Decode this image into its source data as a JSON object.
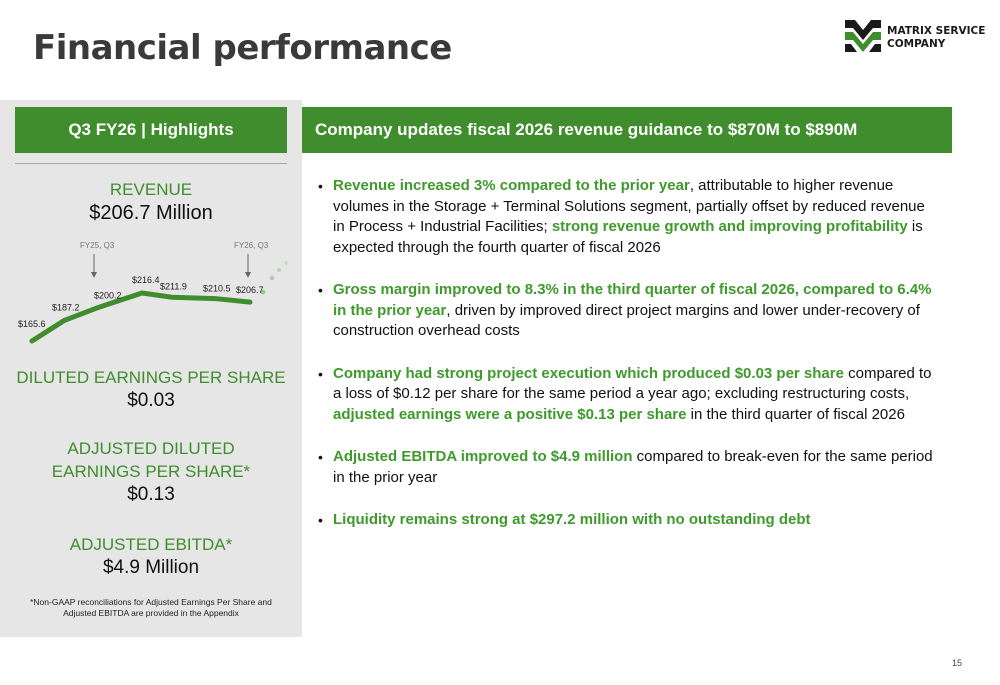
{
  "page": {
    "title": "Financial performance",
    "logo_line1": "MATRIX SERVICE",
    "logo_line2": "COMPANY",
    "page_number": "15"
  },
  "sidebar": {
    "header": "Q3 FY26 | Highlights",
    "revenue_label": "REVENUE",
    "revenue_value": "$206.7 Million",
    "eps_label": "DILUTED EARNINGS PER SHARE",
    "eps_value": "$0.03",
    "adj_eps_label_1": "ADJUSTED DILUTED",
    "adj_eps_label_2": "EARNINGS PER SHARE*",
    "adj_eps_value": "$0.13",
    "ebitda_label": "ADJUSTED EBITDA*",
    "ebitda_value": "$4.9 Million",
    "footnote_1": "*Non-GAAP reconciliations for Adjusted Earnings Per Share and",
    "footnote_2": "Adjusted EBITDA are provided in the Appendix"
  },
  "chart_data": {
    "type": "line",
    "values": [
      165.6,
      187.2,
      200.2,
      216.4,
      211.9,
      210.5,
      206.7
    ],
    "data_labels": [
      "$165.6",
      "$187.2",
      "$200.2",
      "$216.4",
      "$211.9",
      "$210.5",
      "$206.7"
    ],
    "annotations": [
      {
        "text": "FY25, Q3",
        "point_index": 2
      },
      {
        "text": "FY26, Q3",
        "point_index": 6
      }
    ],
    "trend_continues": true,
    "line_color": "#3f8d2c",
    "grid": false
  },
  "main": {
    "header": "Company updates fiscal 2026 revenue guidance to $870M to $890M",
    "bullets": [
      {
        "h1": "Revenue increased 3% compared to the prior year",
        "t1": ", attributable to higher revenue volumes in the Storage + Terminal Solutions segment, partially offset by reduced revenue in Process + Industrial Facilities; ",
        "h2": "strong revenue growth and improving profitability",
        "t2": " is expected through the fourth quarter of fiscal 2026"
      },
      {
        "h1": "Gross margin improved to 8.3% in the third quarter of fiscal 2026, compared to 6.4% in the prior year",
        "t1": ", driven by improved direct project margins and lower under-recovery of construction overhead costs"
      },
      {
        "h1": "Company had strong project execution which produced $0.03 per share",
        "t1": " compared to a loss of $0.12 per share for the same period a year ago; excluding restructuring costs, ",
        "h2": "adjusted earnings were a positive $0.13 per share",
        "t2": " in the third quarter of fiscal 2026"
      },
      {
        "h1": "Adjusted EBITDA improved to $4.9 million",
        "t1": " compared to break-even for the same period in the prior year"
      },
      {
        "h1": "Liquidity remains strong at $297.2 million with no outstanding debt"
      }
    ]
  },
  "colors": {
    "accent_green": "#3f8d2c",
    "highlight_green": "#3f9a2c",
    "panel_gray": "#e6e6e7",
    "title_gray": "#3a3a3a"
  }
}
